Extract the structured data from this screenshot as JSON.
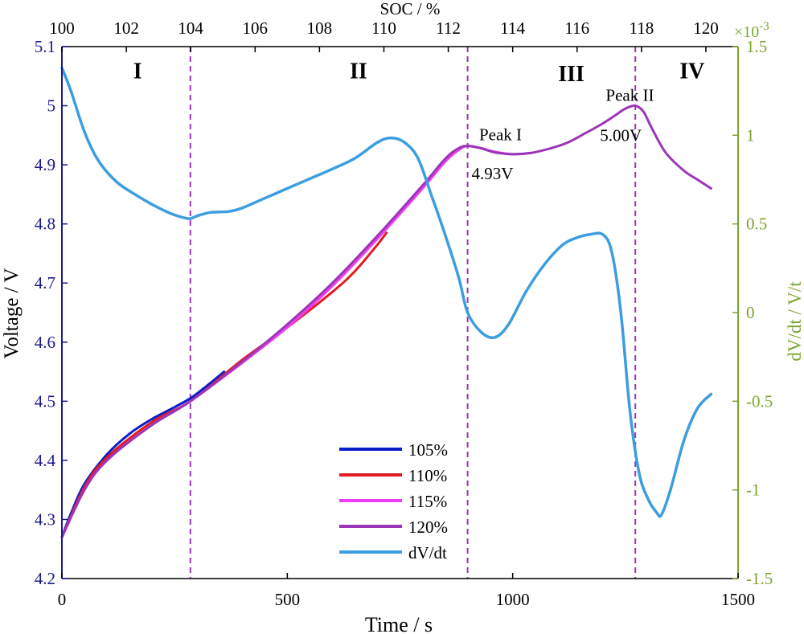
{
  "chart_data": {
    "type": "line",
    "xlabel": "Time / s",
    "ylabel_left": "Voltage / V",
    "ylabel_right": "dV/dt / V/t",
    "right_axis_exponent": "×10",
    "right_axis_exponent_power": "-3",
    "top_axis_label": "SOC / %",
    "xlim": [
      0,
      1500
    ],
    "ylim_left": [
      4.2,
      5.1
    ],
    "ylim_right": [
      -1.5,
      1.5
    ],
    "x_ticks": [
      0,
      500,
      1000,
      1500
    ],
    "y_left_ticks": [
      4.2,
      4.3,
      4.4,
      4.5,
      4.6,
      4.7,
      4.8,
      4.9,
      5,
      5.1
    ],
    "y_right_ticks": [
      -1.5,
      -1,
      -0.5,
      0,
      0.5,
      1,
      1.5
    ],
    "soc_ticks": [
      {
        "label": "100",
        "time": 0
      },
      {
        "label": "102",
        "time": 142.9
      },
      {
        "label": "104",
        "time": 285.7
      },
      {
        "label": "106",
        "time": 428.6
      },
      {
        "label": "108",
        "time": 571.4
      },
      {
        "label": "110",
        "time": 714.3
      },
      {
        "label": "112",
        "time": 857.1
      },
      {
        "label": "114",
        "time": 1000
      },
      {
        "label": "116",
        "time": 1142.9
      },
      {
        "label": "118",
        "time": 1285.7
      },
      {
        "label": "120",
        "time": 1428.6
      }
    ],
    "region_dividers": [
      285,
      900,
      1272
    ],
    "regions": [
      {
        "label": "I",
        "time": 168,
        "voltage": 5.06
      },
      {
        "label": "II",
        "time": 658,
        "voltage": 5.06
      },
      {
        "label": "III",
        "time": 1130,
        "voltage": 5.055
      },
      {
        "label": "IV",
        "time": 1398,
        "voltage": 5.06
      }
    ],
    "annotations": [
      {
        "text": "Peak I",
        "time": 973,
        "voltage": 4.951
      },
      {
        "text": "4.93V",
        "time": 955,
        "voltage": 4.885
      },
      {
        "text": "Peak II",
        "time": 1260,
        "voltage": 5.018
      },
      {
        "text": "5.00V",
        "time": 1240,
        "voltage": 4.95
      }
    ],
    "series": [
      {
        "name": "105%",
        "color": "#0a1ec8",
        "axis": "left",
        "width": 3,
        "x": [
          0,
          20,
          50,
          100,
          150,
          200,
          250,
          285,
          320,
          360
        ],
        "y": [
          4.27,
          4.31,
          4.36,
          4.41,
          4.445,
          4.47,
          4.49,
          4.505,
          4.525,
          4.55
        ]
      },
      {
        "name": "110%",
        "color": "#e01b22",
        "axis": "left",
        "width": 3,
        "x": [
          0,
          50,
          100,
          200,
          285,
          400,
          500,
          600,
          650,
          700,
          720
        ],
        "y": [
          4.27,
          4.355,
          4.405,
          4.465,
          4.5,
          4.57,
          4.625,
          4.685,
          4.72,
          4.765,
          4.785
        ]
      },
      {
        "name": "115%",
        "color": "#f03cf0",
        "axis": "left",
        "width": 3,
        "x": [
          0,
          50,
          100,
          200,
          285,
          400,
          500,
          600,
          700,
          800,
          850,
          880,
          900,
          930,
          960,
          1000,
          1040
        ],
        "y": [
          4.27,
          4.35,
          4.4,
          4.46,
          4.5,
          4.565,
          4.625,
          4.695,
          4.775,
          4.86,
          4.905,
          4.925,
          4.932,
          4.928,
          4.922,
          4.918,
          4.92
        ]
      },
      {
        "name": "120%",
        "color": "#9b36b8",
        "axis": "left",
        "width": 3,
        "x": [
          0,
          50,
          100,
          200,
          285,
          400,
          500,
          600,
          700,
          800,
          850,
          880,
          900,
          930,
          960,
          1000,
          1040,
          1080,
          1120,
          1160,
          1200,
          1230,
          1250,
          1272,
          1290,
          1310,
          1340,
          1380,
          1410,
          1440
        ],
        "y": [
          4.27,
          4.35,
          4.4,
          4.46,
          4.5,
          4.567,
          4.63,
          4.7,
          4.78,
          4.865,
          4.91,
          4.928,
          4.932,
          4.928,
          4.921,
          4.918,
          4.92,
          4.927,
          4.937,
          4.953,
          4.97,
          4.985,
          4.995,
          5.0,
          4.99,
          4.96,
          4.92,
          4.89,
          4.875,
          4.86
        ]
      },
      {
        "name": "dV/dt",
        "color": "#3c9ee0",
        "axis": "right",
        "width": 3.5,
        "x": [
          0,
          20,
          50,
          80,
          120,
          160,
          200,
          240,
          270,
          285,
          300,
          330,
          370,
          400,
          450,
          500,
          550,
          600,
          650,
          700,
          730,
          760,
          790,
          820,
          850,
          880,
          900,
          930,
          960,
          990,
          1030,
          1070,
          1110,
          1140,
          1170,
          1200,
          1220,
          1240,
          1260,
          1280,
          1300,
          1320,
          1330,
          1350,
          1380,
          1410,
          1440
        ],
        "y": [
          1.38,
          1.25,
          1.02,
          0.86,
          0.74,
          0.67,
          0.61,
          0.56,
          0.535,
          0.53,
          0.545,
          0.565,
          0.57,
          0.59,
          0.645,
          0.7,
          0.755,
          0.81,
          0.87,
          0.96,
          0.985,
          0.96,
          0.87,
          0.66,
          0.44,
          0.2,
          0.0,
          -0.11,
          -0.14,
          -0.07,
          0.12,
          0.27,
          0.38,
          0.42,
          0.44,
          0.44,
          0.34,
          0.0,
          -0.55,
          -0.9,
          -1.05,
          -1.13,
          -1.14,
          -1.0,
          -0.72,
          -0.54,
          -0.46
        ]
      }
    ]
  }
}
